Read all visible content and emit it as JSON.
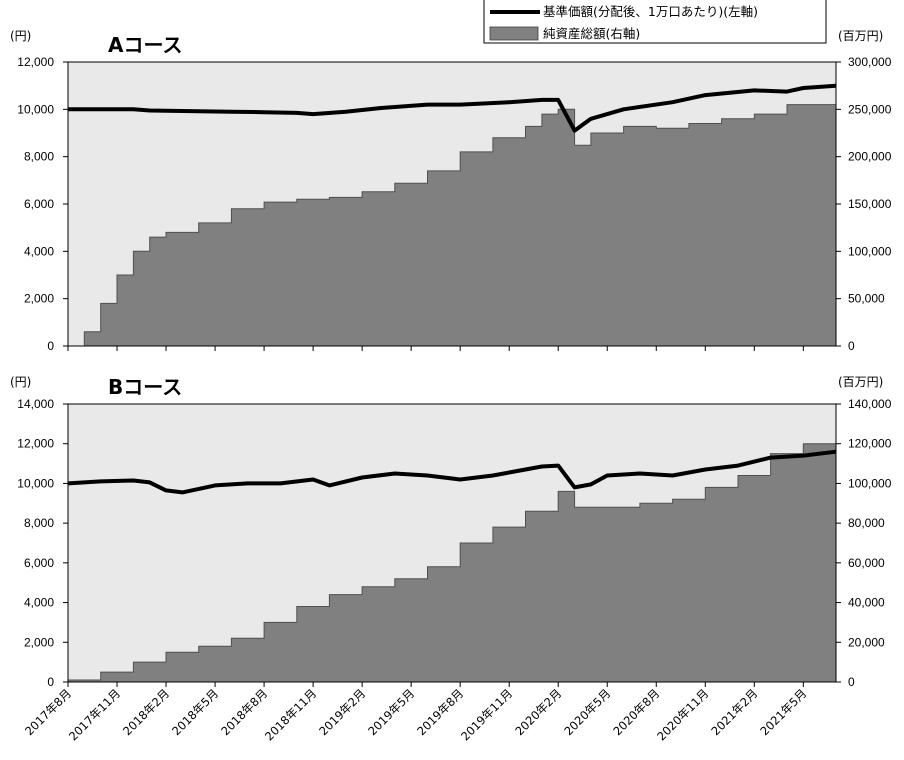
{
  "legend": {
    "nav_label": "基準価額(分配後、1万口あたり)(左軸)",
    "assets_label": "純資産総額(右軸)"
  },
  "colors": {
    "plot_bg": "#e9e9e9",
    "area_fill": "#808080",
    "area_edge": "#505050",
    "line": "#000000"
  },
  "x_labels": [
    "2017年8月",
    "2017年11月",
    "2018年2月",
    "2018年5月",
    "2018年8月",
    "2018年11月",
    "2019年2月",
    "2019年5月",
    "2019年8月",
    "2019年11月",
    "2020年2月",
    "2020年5月",
    "2020年8月",
    "2020年11月",
    "2021年2月",
    "2021年5月"
  ],
  "chart_data": [
    {
      "type": "area",
      "title": "Aコース",
      "left_unit": "(円)",
      "right_unit": "(百万円)",
      "left_ylim": [
        0,
        12000
      ],
      "left_ticks": [
        "0",
        "2,000",
        "4,000",
        "6,000",
        "8,000",
        "10,000",
        "12,000"
      ],
      "right_ylim": [
        0,
        300000
      ],
      "right_ticks": [
        "0",
        "50,000",
        "100,000",
        "150,000",
        "200,000",
        "250,000",
        "300,000"
      ],
      "grid": false,
      "x_range": [
        "2017-08",
        "2021-07"
      ],
      "series": [
        {
          "name": "基準価額(分配後、1万口あたり)(左軸)",
          "axis": "left",
          "points": [
            [
              "2017-08",
              10000
            ],
            [
              "2017-12",
              10000
            ],
            [
              "2018-01",
              9950
            ],
            [
              "2018-04",
              9920
            ],
            [
              "2018-06",
              9900
            ],
            [
              "2018-08",
              9880
            ],
            [
              "2018-10",
              9850
            ],
            [
              "2018-11",
              9800
            ],
            [
              "2019-01",
              9900
            ],
            [
              "2019-03",
              10050
            ],
            [
              "2019-06",
              10200
            ],
            [
              "2019-08",
              10200
            ],
            [
              "2019-11",
              10300
            ],
            [
              "2020-01",
              10400
            ],
            [
              "2020-02",
              10400
            ],
            [
              "2020-03",
              9100
            ],
            [
              "2020-04",
              9600
            ],
            [
              "2020-06",
              10000
            ],
            [
              "2020-09",
              10300
            ],
            [
              "2020-11",
              10600
            ],
            [
              "2021-02",
              10800
            ],
            [
              "2021-04",
              10750
            ],
            [
              "2021-05",
              10900
            ],
            [
              "2021-07",
              11000
            ]
          ]
        },
        {
          "name": "純資産総額(右軸)",
          "axis": "right",
          "points": [
            [
              "2017-08",
              0
            ],
            [
              "2017-09",
              15000
            ],
            [
              "2017-10",
              45000
            ],
            [
              "2017-11",
              75000
            ],
            [
              "2017-12",
              100000
            ],
            [
              "2018-01",
              115000
            ],
            [
              "2018-02",
              120000
            ],
            [
              "2018-04",
              130000
            ],
            [
              "2018-06",
              145000
            ],
            [
              "2018-08",
              152000
            ],
            [
              "2018-10",
              155000
            ],
            [
              "2018-12",
              157000
            ],
            [
              "2019-02",
              163000
            ],
            [
              "2019-04",
              172000
            ],
            [
              "2019-06",
              185000
            ],
            [
              "2019-08",
              205000
            ],
            [
              "2019-10",
              220000
            ],
            [
              "2019-12",
              232000
            ],
            [
              "2020-01",
              245000
            ],
            [
              "2020-02",
              250000
            ],
            [
              "2020-03",
              212000
            ],
            [
              "2020-04",
              225000
            ],
            [
              "2020-06",
              232000
            ],
            [
              "2020-08",
              230000
            ],
            [
              "2020-10",
              235000
            ],
            [
              "2020-12",
              240000
            ],
            [
              "2021-02",
              245000
            ],
            [
              "2021-04",
              255000
            ],
            [
              "2021-07",
              275000
            ]
          ]
        }
      ]
    },
    {
      "type": "area",
      "title": "Bコース",
      "left_unit": "(円)",
      "right_unit": "(百万円)",
      "left_ylim": [
        0,
        14000
      ],
      "left_ticks": [
        "0",
        "2,000",
        "4,000",
        "6,000",
        "8,000",
        "10,000",
        "12,000",
        "14,000"
      ],
      "right_ylim": [
        0,
        140000
      ],
      "right_ticks": [
        "0",
        "20,000",
        "40,000",
        "60,000",
        "80,000",
        "100,000",
        "120,000",
        "140,000"
      ],
      "grid": false,
      "x_range": [
        "2017-08",
        "2021-07"
      ],
      "series": [
        {
          "name": "基準価額(分配後、1万口あたり)(左軸)",
          "axis": "left",
          "points": [
            [
              "2017-08",
              10000
            ],
            [
              "2017-10",
              10100
            ],
            [
              "2017-12",
              10150
            ],
            [
              "2018-01",
              10050
            ],
            [
              "2018-02",
              9650
            ],
            [
              "2018-03",
              9550
            ],
            [
              "2018-05",
              9900
            ],
            [
              "2018-07",
              10000
            ],
            [
              "2018-09",
              10000
            ],
            [
              "2018-11",
              10200
            ],
            [
              "2018-12",
              9900
            ],
            [
              "2019-02",
              10300
            ],
            [
              "2019-04",
              10500
            ],
            [
              "2019-06",
              10400
            ],
            [
              "2019-08",
              10200
            ],
            [
              "2019-10",
              10400
            ],
            [
              "2019-12",
              10700
            ],
            [
              "2020-01",
              10850
            ],
            [
              "2020-02",
              10900
            ],
            [
              "2020-03",
              9800
            ],
            [
              "2020-04",
              9950
            ],
            [
              "2020-05",
              10400
            ],
            [
              "2020-07",
              10500
            ],
            [
              "2020-09",
              10400
            ],
            [
              "2020-11",
              10700
            ],
            [
              "2021-01",
              10900
            ],
            [
              "2021-03",
              11300
            ],
            [
              "2021-05",
              11400
            ],
            [
              "2021-07",
              11600
            ]
          ]
        },
        {
          "name": "純資産総額(右軸)",
          "axis": "right",
          "points": [
            [
              "2017-08",
              1000
            ],
            [
              "2017-10",
              5000
            ],
            [
              "2017-12",
              10000
            ],
            [
              "2018-02",
              15000
            ],
            [
              "2018-04",
              18000
            ],
            [
              "2018-06",
              22000
            ],
            [
              "2018-08",
              30000
            ],
            [
              "2018-10",
              38000
            ],
            [
              "2018-12",
              44000
            ],
            [
              "2019-02",
              48000
            ],
            [
              "2019-04",
              52000
            ],
            [
              "2019-06",
              58000
            ],
            [
              "2019-08",
              70000
            ],
            [
              "2019-10",
              78000
            ],
            [
              "2019-12",
              86000
            ],
            [
              "2020-02",
              96000
            ],
            [
              "2020-03",
              88000
            ],
            [
              "2020-05",
              88000
            ],
            [
              "2020-07",
              90000
            ],
            [
              "2020-09",
              92000
            ],
            [
              "2020-11",
              98000
            ],
            [
              "2021-01",
              104000
            ],
            [
              "2021-03",
              115000
            ],
            [
              "2021-05",
              120000
            ],
            [
              "2021-07",
              126000
            ]
          ]
        }
      ]
    }
  ]
}
